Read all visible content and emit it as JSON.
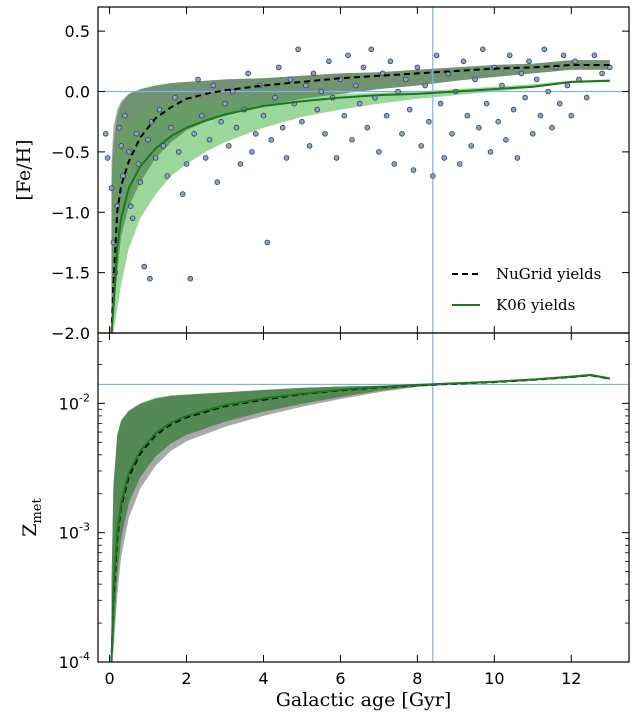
{
  "chart_data": [
    {
      "type": "line",
      "panel": "top",
      "xlabel": "",
      "ylabel": "[Fe/H]",
      "xlim": [
        -0.3,
        13.5
      ],
      "ylim": [
        -2.0,
        0.7
      ],
      "yticks": [
        -2.0,
        -1.5,
        -1.0,
        -0.5,
        0.0,
        0.5
      ],
      "ytick_labels": [
        "−2.0",
        "−1.5",
        "−1.0",
        "−0.5",
        "0.0",
        "0.5"
      ],
      "reference_lines": {
        "x": 8.4,
        "y": 0.0
      },
      "legend": {
        "placement": "lower-right",
        "entries": [
          "NuGrid yields",
          "K06 yields"
        ]
      },
      "series": [
        {
          "name": "NuGrid yields",
          "style": "dashed",
          "color": "#000000",
          "x": [
            0.05,
            0.1,
            0.2,
            0.3,
            0.5,
            0.8,
            1.2,
            1.6,
            2,
            2.5,
            3,
            4,
            5,
            6,
            7,
            8,
            9,
            10,
            11,
            12,
            13
          ],
          "y": [
            -2.0,
            -1.6,
            -1.0,
            -0.78,
            -0.58,
            -0.38,
            -0.22,
            -0.13,
            -0.06,
            -0.02,
            0.01,
            0.05,
            0.08,
            0.11,
            0.13,
            0.15,
            0.17,
            0.19,
            0.2,
            0.22,
            0.22
          ],
          "band_upper": [
            -0.6,
            -0.3,
            -0.15,
            -0.08,
            -0.02,
            0.02,
            0.05,
            0.07,
            0.08,
            0.09,
            0.1,
            0.11,
            0.13,
            0.15,
            0.16,
            0.18,
            0.2,
            0.22,
            0.23,
            0.26,
            0.26
          ],
          "band_lower": [
            -2.0,
            -1.9,
            -1.5,
            -1.2,
            -0.95,
            -0.75,
            -0.55,
            -0.42,
            -0.32,
            -0.25,
            -0.2,
            -0.12,
            -0.06,
            -0.02,
            0.02,
            0.05,
            0.09,
            0.12,
            0.15,
            0.18,
            0.18
          ]
        },
        {
          "name": "K06 yields",
          "style": "solid",
          "color": "#1a7a1a",
          "x": [
            0.05,
            0.1,
            0.2,
            0.3,
            0.5,
            0.8,
            1.2,
            1.6,
            2,
            2.5,
            3,
            4,
            5,
            6,
            7,
            8,
            9,
            10,
            11,
            12,
            13
          ],
          "y": [
            -2.0,
            -1.8,
            -1.3,
            -1.05,
            -0.8,
            -0.62,
            -0.47,
            -0.37,
            -0.3,
            -0.24,
            -0.19,
            -0.12,
            -0.08,
            -0.05,
            -0.03,
            -0.02,
            0.0,
            0.02,
            0.04,
            0.08,
            0.09
          ],
          "band_upper": [
            -1.0,
            -0.7,
            -0.45,
            -0.35,
            -0.25,
            -0.18,
            -0.13,
            -0.1,
            -0.09,
            -0.08,
            -0.06,
            -0.04,
            -0.03,
            -0.02,
            -0.01,
            0.0,
            0.02,
            0.04,
            0.06,
            0.09,
            0.1
          ],
          "band_lower": [
            -2.0,
            -2.0,
            -1.8,
            -1.6,
            -1.3,
            -1.05,
            -0.85,
            -0.7,
            -0.6,
            -0.5,
            -0.42,
            -0.3,
            -0.21,
            -0.15,
            -0.1,
            -0.06,
            -0.03,
            0.0,
            0.03,
            0.07,
            0.08
          ]
        }
      ],
      "scatter": {
        "color": "#8fa3c8",
        "edge": "#2b3d5a",
        "points": [
          [
            -0.1,
            -0.35
          ],
          [
            -0.05,
            -0.55
          ],
          [
            0.05,
            -0.8
          ],
          [
            0.1,
            -1.25
          ],
          [
            0.15,
            -1.5
          ],
          [
            0.2,
            -0.95
          ],
          [
            0.25,
            -0.3
          ],
          [
            0.3,
            -0.45
          ],
          [
            0.35,
            -0.7
          ],
          [
            0.4,
            -0.2
          ],
          [
            0.5,
            -0.5
          ],
          [
            0.55,
            -0.95
          ],
          [
            0.6,
            -1.05
          ],
          [
            0.7,
            -0.35
          ],
          [
            0.75,
            -0.6
          ],
          [
            0.8,
            -0.75
          ],
          [
            0.9,
            -1.45
          ],
          [
            1.0,
            -0.4
          ],
          [
            1.05,
            -1.55
          ],
          [
            1.1,
            -0.25
          ],
          [
            1.2,
            -0.55
          ],
          [
            1.3,
            -0.15
          ],
          [
            1.4,
            -0.45
          ],
          [
            1.5,
            -0.7
          ],
          [
            1.6,
            -0.3
          ],
          [
            1.7,
            -0.05
          ],
          [
            1.8,
            -0.5
          ],
          [
            1.9,
            -0.85
          ],
          [
            2.0,
            -0.6
          ],
          [
            2.1,
            -1.55
          ],
          [
            2.2,
            -0.35
          ],
          [
            2.3,
            0.1
          ],
          [
            2.4,
            -0.2
          ],
          [
            2.5,
            -0.55
          ],
          [
            2.6,
            -0.4
          ],
          [
            2.7,
            0.05
          ],
          [
            2.8,
            -0.75
          ],
          [
            2.9,
            -0.25
          ],
          [
            3.0,
            -0.1
          ],
          [
            3.1,
            -0.45
          ],
          [
            3.2,
            0.0
          ],
          [
            3.3,
            -0.3
          ],
          [
            3.4,
            -0.6
          ],
          [
            3.5,
            -0.15
          ],
          [
            3.6,
            0.15
          ],
          [
            3.7,
            -0.5
          ],
          [
            3.8,
            -0.35
          ],
          [
            3.9,
            0.05
          ],
          [
            4.0,
            -0.2
          ],
          [
            4.1,
            -1.25
          ],
          [
            4.2,
            -0.4
          ],
          [
            4.3,
            -0.05
          ],
          [
            4.4,
            0.2
          ],
          [
            4.5,
            -0.3
          ],
          [
            4.6,
            -0.55
          ],
          [
            4.7,
            0.1
          ],
          [
            4.8,
            -0.1
          ],
          [
            4.9,
            0.35
          ],
          [
            5.0,
            -0.25
          ],
          [
            5.1,
            0.05
          ],
          [
            5.2,
            -0.45
          ],
          [
            5.3,
            0.15
          ],
          [
            5.4,
            -0.15
          ],
          [
            5.5,
            0.0
          ],
          [
            5.6,
            -0.35
          ],
          [
            5.7,
            0.25
          ],
          [
            5.8,
            -0.05
          ],
          [
            5.9,
            -0.55
          ],
          [
            6.0,
            0.1
          ],
          [
            6.1,
            -0.2
          ],
          [
            6.2,
            0.3
          ],
          [
            6.3,
            -0.4
          ],
          [
            6.4,
            0.05
          ],
          [
            6.5,
            -0.1
          ],
          [
            6.6,
            0.2
          ],
          [
            6.7,
            -0.3
          ],
          [
            6.8,
            0.35
          ],
          [
            6.9,
            -0.05
          ],
          [
            7.0,
            -0.5
          ],
          [
            7.1,
            0.15
          ],
          [
            7.2,
            -0.2
          ],
          [
            7.3,
            0.25
          ],
          [
            7.4,
            -0.6
          ],
          [
            7.5,
            0.0
          ],
          [
            7.6,
            -0.35
          ],
          [
            7.7,
            0.1
          ],
          [
            7.8,
            -0.15
          ],
          [
            7.9,
            -0.65
          ],
          [
            8.0,
            0.2
          ],
          [
            8.1,
            -0.45
          ],
          [
            8.2,
            0.05
          ],
          [
            8.3,
            -0.25
          ],
          [
            8.4,
            -0.7
          ],
          [
            8.5,
            0.3
          ],
          [
            8.6,
            -0.1
          ],
          [
            8.7,
            -0.55
          ],
          [
            8.8,
            0.15
          ],
          [
            8.9,
            -0.35
          ],
          [
            9.0,
            0.0
          ],
          [
            9.1,
            -0.6
          ],
          [
            9.2,
            0.25
          ],
          [
            9.3,
            -0.2
          ],
          [
            9.4,
            -0.45
          ],
          [
            9.5,
            0.1
          ],
          [
            9.6,
            -0.3
          ],
          [
            9.7,
            0.35
          ],
          [
            9.8,
            -0.1
          ],
          [
            9.9,
            -0.5
          ],
          [
            10.0,
            0.2
          ],
          [
            10.1,
            -0.25
          ],
          [
            10.2,
            0.05
          ],
          [
            10.3,
            -0.4
          ],
          [
            10.4,
            0.3
          ],
          [
            10.5,
            -0.15
          ],
          [
            10.6,
            -0.55
          ],
          [
            10.7,
            0.15
          ],
          [
            10.8,
            -0.05
          ],
          [
            10.9,
            0.25
          ],
          [
            11.0,
            -0.35
          ],
          [
            11.1,
            0.1
          ],
          [
            11.2,
            -0.2
          ],
          [
            11.3,
            0.35
          ],
          [
            11.4,
            0.0
          ],
          [
            11.5,
            -0.3
          ],
          [
            11.6,
            0.2
          ],
          [
            11.7,
            -0.1
          ],
          [
            11.8,
            0.3
          ],
          [
            11.9,
            0.05
          ],
          [
            12.0,
            -0.2
          ],
          [
            12.1,
            0.25
          ],
          [
            12.2,
            0.1
          ],
          [
            12.4,
            -0.05
          ],
          [
            12.6,
            0.3
          ],
          [
            12.8,
            0.15
          ],
          [
            13.0,
            0.2
          ]
        ]
      }
    },
    {
      "type": "line",
      "panel": "bottom",
      "xlabel": "Galactic age [Gyr]",
      "ylabel": "Z_met",
      "ylabel_main": "Z",
      "ylabel_sub": "met",
      "yscale": "log",
      "xlim": [
        -0.3,
        13.5
      ],
      "ylim": [
        0.0001,
        0.035
      ],
      "xticks": [
        0,
        2,
        4,
        6,
        8,
        10,
        12
      ],
      "xtick_labels": [
        "0",
        "2",
        "4",
        "6",
        "8",
        "10",
        "12"
      ],
      "yticks": [
        0.0001,
        0.001,
        0.01
      ],
      "ytick_labels": [
        {
          "base": "10",
          "exp": "-4"
        },
        {
          "base": "10",
          "exp": "-3"
        },
        {
          "base": "10",
          "exp": "-2"
        }
      ],
      "reference_lines": {
        "x": 8.4,
        "y": 0.014
      },
      "series": [
        {
          "name": "NuGrid yields",
          "style": "dashed",
          "color": "#000000",
          "x": [
            0.05,
            0.1,
            0.2,
            0.3,
            0.5,
            0.8,
            1.2,
            1.6,
            2,
            3,
            4,
            5,
            6,
            7,
            8,
            9,
            10,
            11,
            12,
            12.5,
            13
          ],
          "y": [
            0.0001,
            0.0003,
            0.0009,
            0.0016,
            0.0027,
            0.0041,
            0.0057,
            0.0069,
            0.0078,
            0.0095,
            0.0107,
            0.0118,
            0.0126,
            0.0133,
            0.0138,
            0.0142,
            0.0146,
            0.0152,
            0.016,
            0.0165,
            0.0155
          ],
          "band_upper": [
            0.0004,
            0.0022,
            0.0055,
            0.0072,
            0.0086,
            0.0098,
            0.0108,
            0.0114,
            0.0116,
            0.0121,
            0.0126,
            0.0131,
            0.0135,
            0.0137,
            0.0139,
            0.0143,
            0.0148,
            0.0154,
            0.0163,
            0.0167,
            0.0157
          ],
          "band_lower": [
            0.0001,
            0.00012,
            0.00032,
            0.00065,
            0.0013,
            0.0022,
            0.0033,
            0.0043,
            0.0051,
            0.0066,
            0.008,
            0.0094,
            0.0108,
            0.0122,
            0.0134,
            0.014,
            0.0144,
            0.015,
            0.0157,
            0.0162,
            0.0152
          ]
        },
        {
          "name": "K06 yields",
          "style": "solid",
          "color": "#1a7a1a",
          "x": [
            0.05,
            0.1,
            0.2,
            0.3,
            0.5,
            0.8,
            1.2,
            1.6,
            2,
            3,
            4,
            5,
            6,
            7,
            8,
            9,
            10,
            11,
            12,
            12.5,
            13
          ],
          "y": [
            0.0001,
            0.00035,
            0.001,
            0.0017,
            0.0029,
            0.0043,
            0.0059,
            0.0071,
            0.008,
            0.0097,
            0.0109,
            0.0119,
            0.0127,
            0.0134,
            0.0139,
            0.0143,
            0.0147,
            0.0153,
            0.0161,
            0.0166,
            0.0156
          ],
          "band_upper": [
            0.0004,
            0.0023,
            0.0057,
            0.0074,
            0.0088,
            0.01,
            0.011,
            0.0115,
            0.0117,
            0.0122,
            0.0127,
            0.0132,
            0.0135,
            0.0137,
            0.0139,
            0.0143,
            0.0148,
            0.0154,
            0.0163,
            0.0167,
            0.0157
          ],
          "band_lower": [
            0.0001,
            0.00014,
            0.00045,
            0.0009,
            0.0017,
            0.0027,
            0.0039,
            0.0049,
            0.0057,
            0.0072,
            0.0086,
            0.0099,
            0.0112,
            0.0125,
            0.0135,
            0.0141,
            0.0145,
            0.0151,
            0.0158,
            0.0163,
            0.0153
          ]
        }
      ]
    }
  ],
  "colors": {
    "reference_line": "#7fb3e8",
    "nugrid_band": "#a9a9a9",
    "k06_band_top": "#79c979",
    "k06_band_bottom": "#3f7f3f",
    "dark_band_top": "#5a8a5a",
    "scatter_face": "#8fa3c8",
    "scatter_edge": "#2b3d5a"
  }
}
